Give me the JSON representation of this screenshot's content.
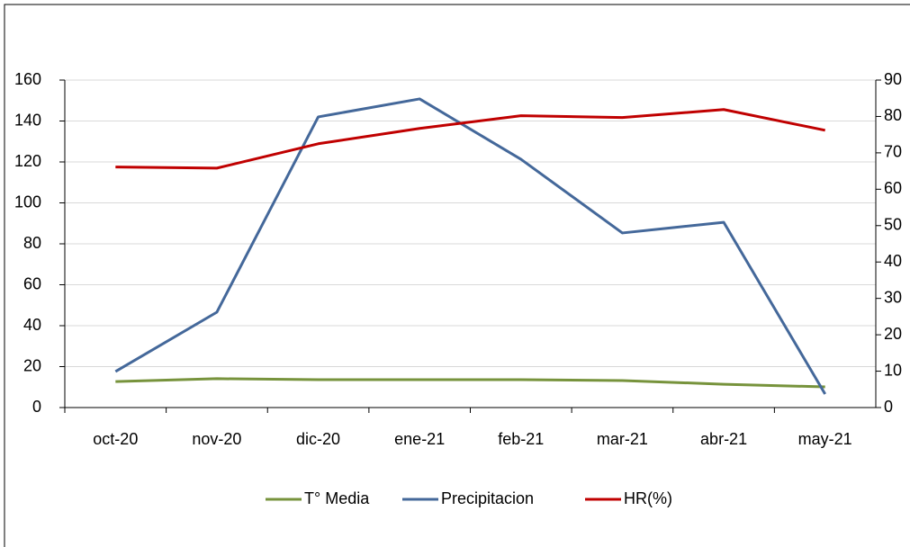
{
  "chart_data": {
    "type": "line",
    "categories": [
      "oct-20",
      "nov-20",
      "dic-20",
      "ene-21",
      "feb-21",
      "mar-21",
      "abr-21",
      "may-21"
    ],
    "series": [
      {
        "name": "T° Media",
        "color": "#77933c",
        "values": [
          12.7,
          14.1,
          13.6,
          13.6,
          13.6,
          13.2,
          11.4,
          10.1
        ]
      },
      {
        "name": "Precipitacion",
        "color": "#44689a",
        "values": [
          17.6,
          46.6,
          142,
          150.8,
          121.3,
          85.3,
          90.5,
          6.6
        ]
      },
      {
        "name": "HR(%)",
        "color": "#c00000",
        "axis": "y2",
        "values": [
          66.1,
          65.8,
          72.5,
          76.7,
          80.2,
          79.7,
          81.9,
          76.2
        ]
      }
    ],
    "ylim": [
      0,
      160
    ],
    "yticks": [
      0,
      20,
      40,
      60,
      80,
      100,
      120,
      140,
      160
    ],
    "y2lim": [
      0,
      90
    ],
    "y2ticks": [
      0,
      10,
      20,
      30,
      40,
      50,
      60,
      70,
      80,
      90
    ],
    "grid": true,
    "legend": "bottom"
  }
}
